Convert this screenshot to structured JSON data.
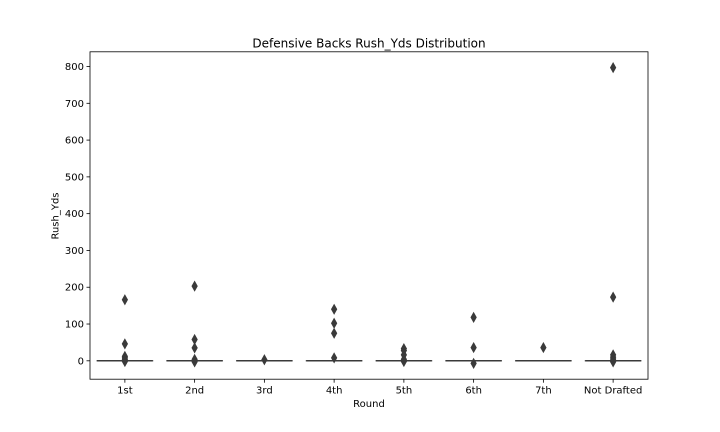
{
  "chart_data": {
    "type": "boxplot",
    "title": "Defensive Backs Rush_Yds Distribution",
    "xlabel": "Round",
    "ylabel": "Rush_Yds",
    "categories": [
      "1st",
      "2nd",
      "3rd",
      "4th",
      "5th",
      "6th",
      "7th",
      "Not Drafted"
    ],
    "ylim": [
      -50,
      840
    ],
    "yticks": [
      0,
      100,
      200,
      300,
      400,
      500,
      600,
      700,
      800
    ],
    "grid": false,
    "box_color": "#3a3a3a",
    "groups": [
      {
        "category": "1st",
        "q1": 0,
        "median": 0,
        "q3": 0,
        "whisker_low": 0,
        "whisker_high": 0,
        "outliers": [
          166,
          46,
          12,
          8,
          4,
          -2
        ]
      },
      {
        "category": "2nd",
        "q1": 0,
        "median": 0,
        "q3": 0,
        "whisker_low": 0,
        "whisker_high": 0,
        "outliers": [
          203,
          58,
          35,
          4,
          -3
        ]
      },
      {
        "category": "3rd",
        "q1": 0,
        "median": 0,
        "q3": 0,
        "whisker_low": 0,
        "whisker_high": 0,
        "outliers": [
          3
        ]
      },
      {
        "category": "4th",
        "q1": 0,
        "median": 0,
        "q3": 0,
        "whisker_low": 0,
        "whisker_high": 0,
        "outliers": [
          140,
          102,
          75,
          8
        ]
      },
      {
        "category": "5th",
        "q1": 0,
        "median": 0,
        "q3": 0,
        "whisker_low": 0,
        "whisker_high": 0,
        "outliers": [
          33,
          28,
          16,
          4,
          -2
        ]
      },
      {
        "category": "6th",
        "q1": 0,
        "median": 0,
        "q3": 0,
        "whisker_low": 0,
        "whisker_high": 0,
        "outliers": [
          118,
          36,
          -7
        ]
      },
      {
        "category": "7th",
        "q1": 0,
        "median": 0,
        "q3": 0,
        "whisker_low": 0,
        "whisker_high": 0,
        "outliers": [
          36
        ]
      },
      {
        "category": "Not Drafted",
        "q1": 0,
        "median": 0,
        "q3": 0,
        "whisker_low": 0,
        "whisker_high": 0,
        "outliers": [
          797,
          173,
          16,
          10,
          5,
          1,
          -3
        ]
      }
    ]
  }
}
